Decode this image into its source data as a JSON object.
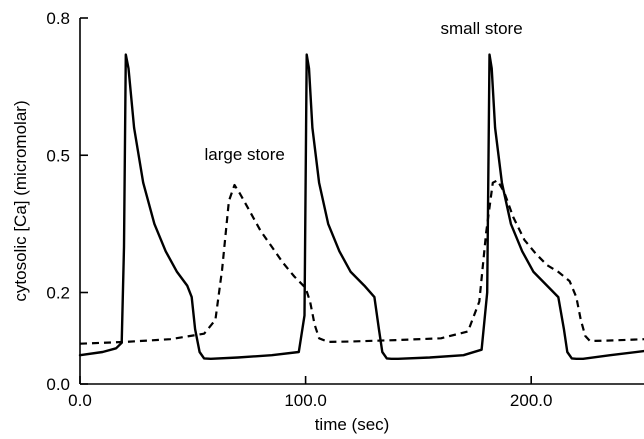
{
  "chart_data": {
    "type": "line",
    "title": "",
    "xlabel": "time (sec)",
    "ylabel": "cytosolic [Ca] (micromolar)",
    "xlim": [
      0,
      250
    ],
    "ylim": [
      0,
      0.8
    ],
    "xticks": [
      {
        "value": 0,
        "label": "0.0"
      },
      {
        "value": 100,
        "label": "100.0"
      },
      {
        "value": 200,
        "label": "200.0"
      }
    ],
    "yticks": [
      {
        "value": 0.0,
        "label": "0.0"
      },
      {
        "value": 0.2,
        "label": "0.2"
      },
      {
        "value": 0.5,
        "label": "0.5"
      },
      {
        "value": 0.8,
        "label": "0.8"
      }
    ],
    "grid": false,
    "series": [
      {
        "style": "solid",
        "x": [
          0,
          10,
          16,
          18.5,
          19.5,
          20.3,
          21.5,
          24,
          28,
          33,
          38,
          43,
          47.5,
          49.5,
          51,
          53,
          55,
          58,
          70,
          85,
          97,
          99.5,
          100.5,
          101.5,
          103,
          106,
          110,
          115,
          120,
          126,
          130.5,
          132.5,
          134,
          136,
          138,
          141,
          155,
          170,
          178,
          180.5,
          181.5,
          182.5,
          184,
          187,
          191,
          196,
          201,
          207,
          212,
          214.5,
          216,
          218,
          220,
          223,
          235,
          250
        ],
        "y": [
          0.063,
          0.07,
          0.078,
          0.09,
          0.3,
          0.72,
          0.69,
          0.56,
          0.44,
          0.35,
          0.29,
          0.245,
          0.215,
          0.19,
          0.12,
          0.07,
          0.056,
          0.055,
          0.058,
          0.063,
          0.07,
          0.15,
          0.72,
          0.69,
          0.56,
          0.44,
          0.35,
          0.29,
          0.245,
          0.215,
          0.19,
          0.12,
          0.07,
          0.056,
          0.055,
          0.055,
          0.058,
          0.063,
          0.075,
          0.2,
          0.72,
          0.69,
          0.56,
          0.44,
          0.35,
          0.29,
          0.245,
          0.215,
          0.19,
          0.12,
          0.07,
          0.056,
          0.055,
          0.055,
          0.063,
          0.072
        ]
      },
      {
        "style": "dashed",
        "x": [
          0,
          20,
          40,
          55,
          60,
          63,
          66,
          68.5,
          71,
          75,
          80,
          85,
          90,
          95,
          100,
          102,
          104,
          106,
          110,
          120,
          140,
          160,
          172,
          177,
          180,
          183,
          185,
          188,
          192,
          197,
          202,
          207,
          212,
          217,
          220,
          222,
          224,
          226,
          235,
          250
        ],
        "y": [
          0.088,
          0.092,
          0.098,
          0.11,
          0.14,
          0.25,
          0.4,
          0.435,
          0.415,
          0.38,
          0.335,
          0.3,
          0.265,
          0.235,
          0.21,
          0.18,
          0.13,
          0.1,
          0.092,
          0.093,
          0.096,
          0.1,
          0.115,
          0.18,
          0.33,
          0.44,
          0.445,
          0.42,
          0.365,
          0.315,
          0.285,
          0.26,
          0.245,
          0.225,
          0.19,
          0.14,
          0.105,
          0.094,
          0.095,
          0.098
        ]
      }
    ],
    "annotations": [
      {
        "text": "large store",
        "x": 73,
        "y": 0.49
      },
      {
        "text": "small store",
        "x": 178,
        "y": 0.765
      }
    ]
  }
}
